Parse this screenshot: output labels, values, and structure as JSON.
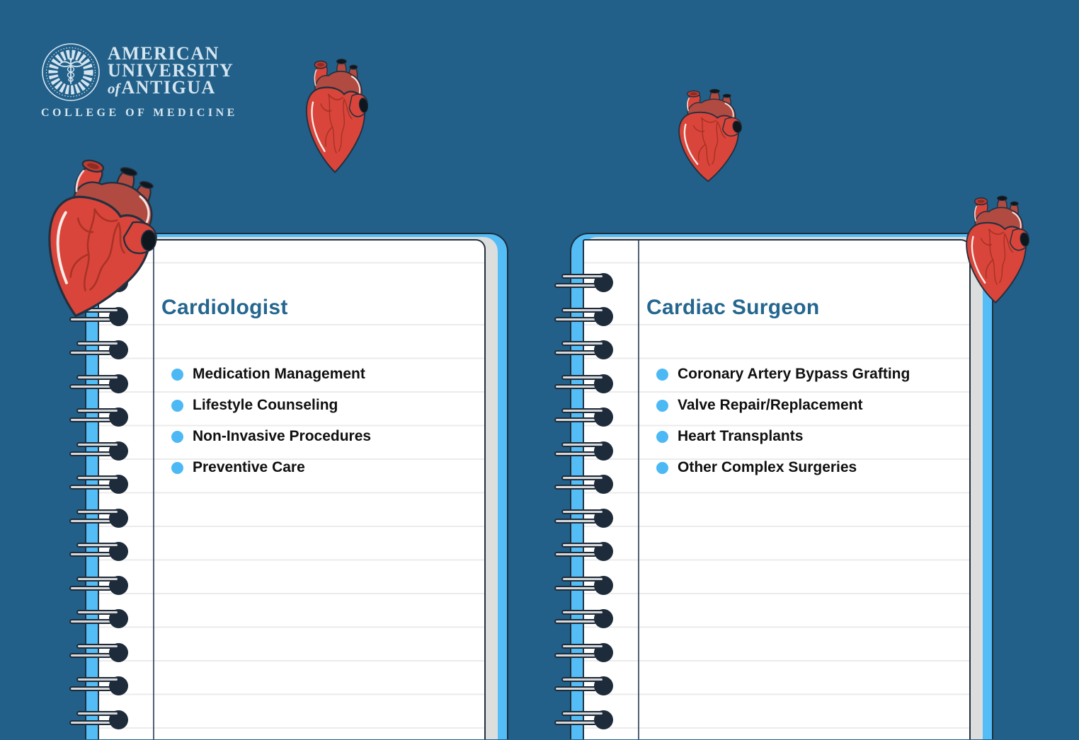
{
  "logo": {
    "name_line1": "AMERICAN",
    "name_line2": "UNIVERSITY",
    "name_line3_prefix": "of",
    "name_line3": "ANTIGUA",
    "subtitle": "COLLEGE OF MEDICINE"
  },
  "panels": [
    {
      "title": "Cardiologist",
      "items": [
        "Medication Management",
        "Lifestyle Counseling",
        "Non-Invasive Procedures",
        "Preventive Care"
      ]
    },
    {
      "title": "Cardiac Surgeon",
      "items": [
        "Coronary Artery Bypass Grafting",
        "Valve Repair/Replacement",
        "Heart Transplants",
        "Other Complex Surgeries"
      ]
    }
  ],
  "icons": {
    "hearts": "anatomical-heart-illustration",
    "logo_seal": "caduceus-seal"
  },
  "colors": {
    "background": "#226089",
    "notebook_cover": "#54bdf6",
    "page_edge": "#dcdddd",
    "paper": "#ffffff",
    "ruled_line": "#ebebeb",
    "margin_line": "#3e4f66",
    "title_text": "#24668f",
    "bullet": "#4cb9f4",
    "item_text": "#101010",
    "spiral_dark": "#1d2b3a",
    "spiral_bar": "#d8d8d8",
    "heart_red": "#d9453a",
    "heart_dark_red": "#b14a40",
    "logo_text": "#d5e5f0"
  }
}
